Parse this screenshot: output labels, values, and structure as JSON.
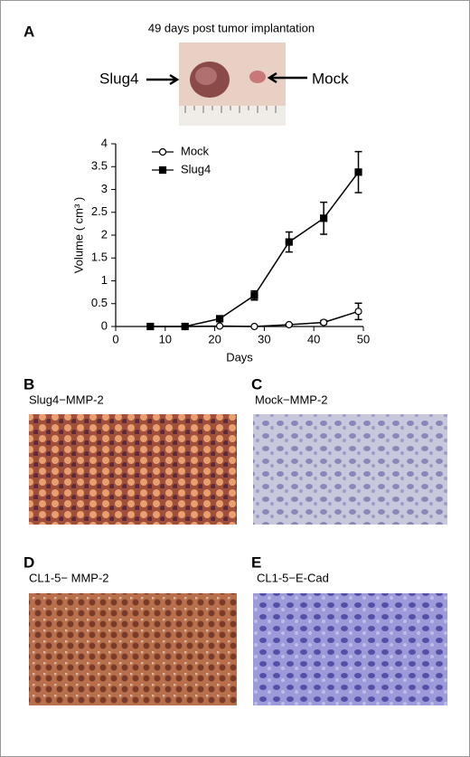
{
  "chart_data": {
    "type": "line",
    "xlabel": "Days",
    "ylabel": "Volume ( cm³ )",
    "x": [
      7,
      14,
      21,
      28,
      35,
      42,
      49
    ],
    "series": [
      {
        "name": "Mock",
        "color": "#000000",
        "marker": "open-circle",
        "values": [
          0,
          0,
          0.01,
          0,
          0.04,
          0.09,
          0.33
        ],
        "errors": [
          0,
          0,
          0,
          0,
          0.02,
          0.04,
          0.18
        ]
      },
      {
        "name": "Slug4",
        "color": "#000000",
        "marker": "filled-square",
        "values": [
          0,
          0,
          0.17,
          0.68,
          1.85,
          2.37,
          3.38
        ],
        "errors": [
          0,
          0,
          0.03,
          0.1,
          0.22,
          0.35,
          0.45
        ]
      }
    ],
    "xlim": [
      0,
      50
    ],
    "xticks": [
      0,
      10,
      20,
      30,
      40,
      50
    ],
    "ylim": [
      0,
      4
    ],
    "yticks": [
      0,
      0.5,
      1,
      1.5,
      2,
      2.5,
      3,
      3.5,
      4
    ],
    "legend": "upper-left",
    "grid": false
  },
  "panels": [
    {
      "letter": "A",
      "caption": "49 days post tumor implantation",
      "labels": [
        "Slug4",
        "Mock"
      ]
    },
    {
      "letter": "B",
      "caption": "Slug4−MMP-2"
    },
    {
      "letter": "C",
      "caption": "Mock−MMP-2"
    },
    {
      "letter": "D",
      "caption": "CL1-5− MMP-2"
    },
    {
      "letter": "E",
      "caption": "CL1-5−E-Cad"
    }
  ]
}
